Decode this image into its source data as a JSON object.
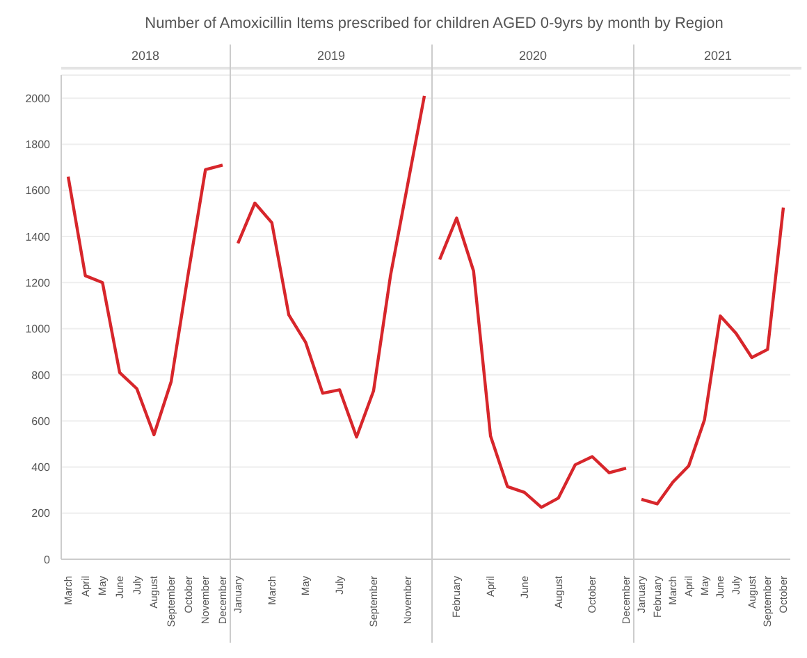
{
  "chart_data": [
    {
      "type": "line",
      "title": "Number of Amoxicillin Items prescribed for children AGED 0-9yrs by month by Region",
      "subtitle": "2018",
      "categories": [
        "March",
        "April",
        "May",
        "June",
        "July",
        "August",
        "September",
        "October",
        "November",
        "December"
      ],
      "values": [
        1660,
        1230,
        1200,
        810,
        740,
        540,
        770,
        1240,
        1690,
        1710
      ],
      "color": "#d7262b",
      "ylim": [
        0,
        2100
      ],
      "yticks": [
        0,
        200,
        400,
        600,
        800,
        1000,
        1200,
        1400,
        1600,
        1800,
        2000
      ],
      "grid": "y"
    },
    {
      "type": "line",
      "subtitle": "2019",
      "categories": [
        "January",
        null,
        "March",
        null,
        "May",
        null,
        "July",
        null,
        "September",
        null,
        "November",
        null
      ],
      "values": [
        1370,
        1545,
        1460,
        1060,
        940,
        720,
        735,
        530,
        730,
        1230,
        1620,
        2010
      ],
      "color": "#d7262b",
      "ylim": [
        0,
        2100
      ],
      "yticks": [
        0,
        200,
        400,
        600,
        800,
        1000,
        1200,
        1400,
        1600,
        1800,
        2000
      ],
      "grid": "y",
      "tick_labels": "x"
    },
    {
      "type": "line",
      "subtitle": "2020",
      "categories": [
        null,
        "February",
        null,
        "April",
        null,
        "June",
        null,
        "August",
        null,
        "October",
        null,
        "December"
      ],
      "values": [
        1300,
        1480,
        1250,
        535,
        315,
        290,
        225,
        265,
        410,
        445,
        375,
        395
      ],
      "color": "#d7262b",
      "ylim": [
        0,
        2100
      ],
      "yticks": [
        0,
        200,
        400,
        600,
        800,
        1000,
        1200,
        1400,
        1600,
        1800,
        2000
      ],
      "grid": "y",
      "tick_labels": "x"
    },
    {
      "type": "line",
      "subtitle": "2021",
      "categories": [
        "January",
        "February",
        "March",
        "April",
        "May",
        "June",
        "July",
        "August",
        "September",
        "October"
      ],
      "values": [
        260,
        240,
        335,
        405,
        605,
        1055,
        980,
        875,
        910,
        1525
      ],
      "color": "#d7262b",
      "ylim": [
        0,
        2100
      ],
      "yticks": [
        0,
        200,
        400,
        600,
        800,
        1000,
        1200,
        1400,
        1600,
        1800,
        2000
      ],
      "grid": "y",
      "tick_labels": "x"
    }
  ]
}
